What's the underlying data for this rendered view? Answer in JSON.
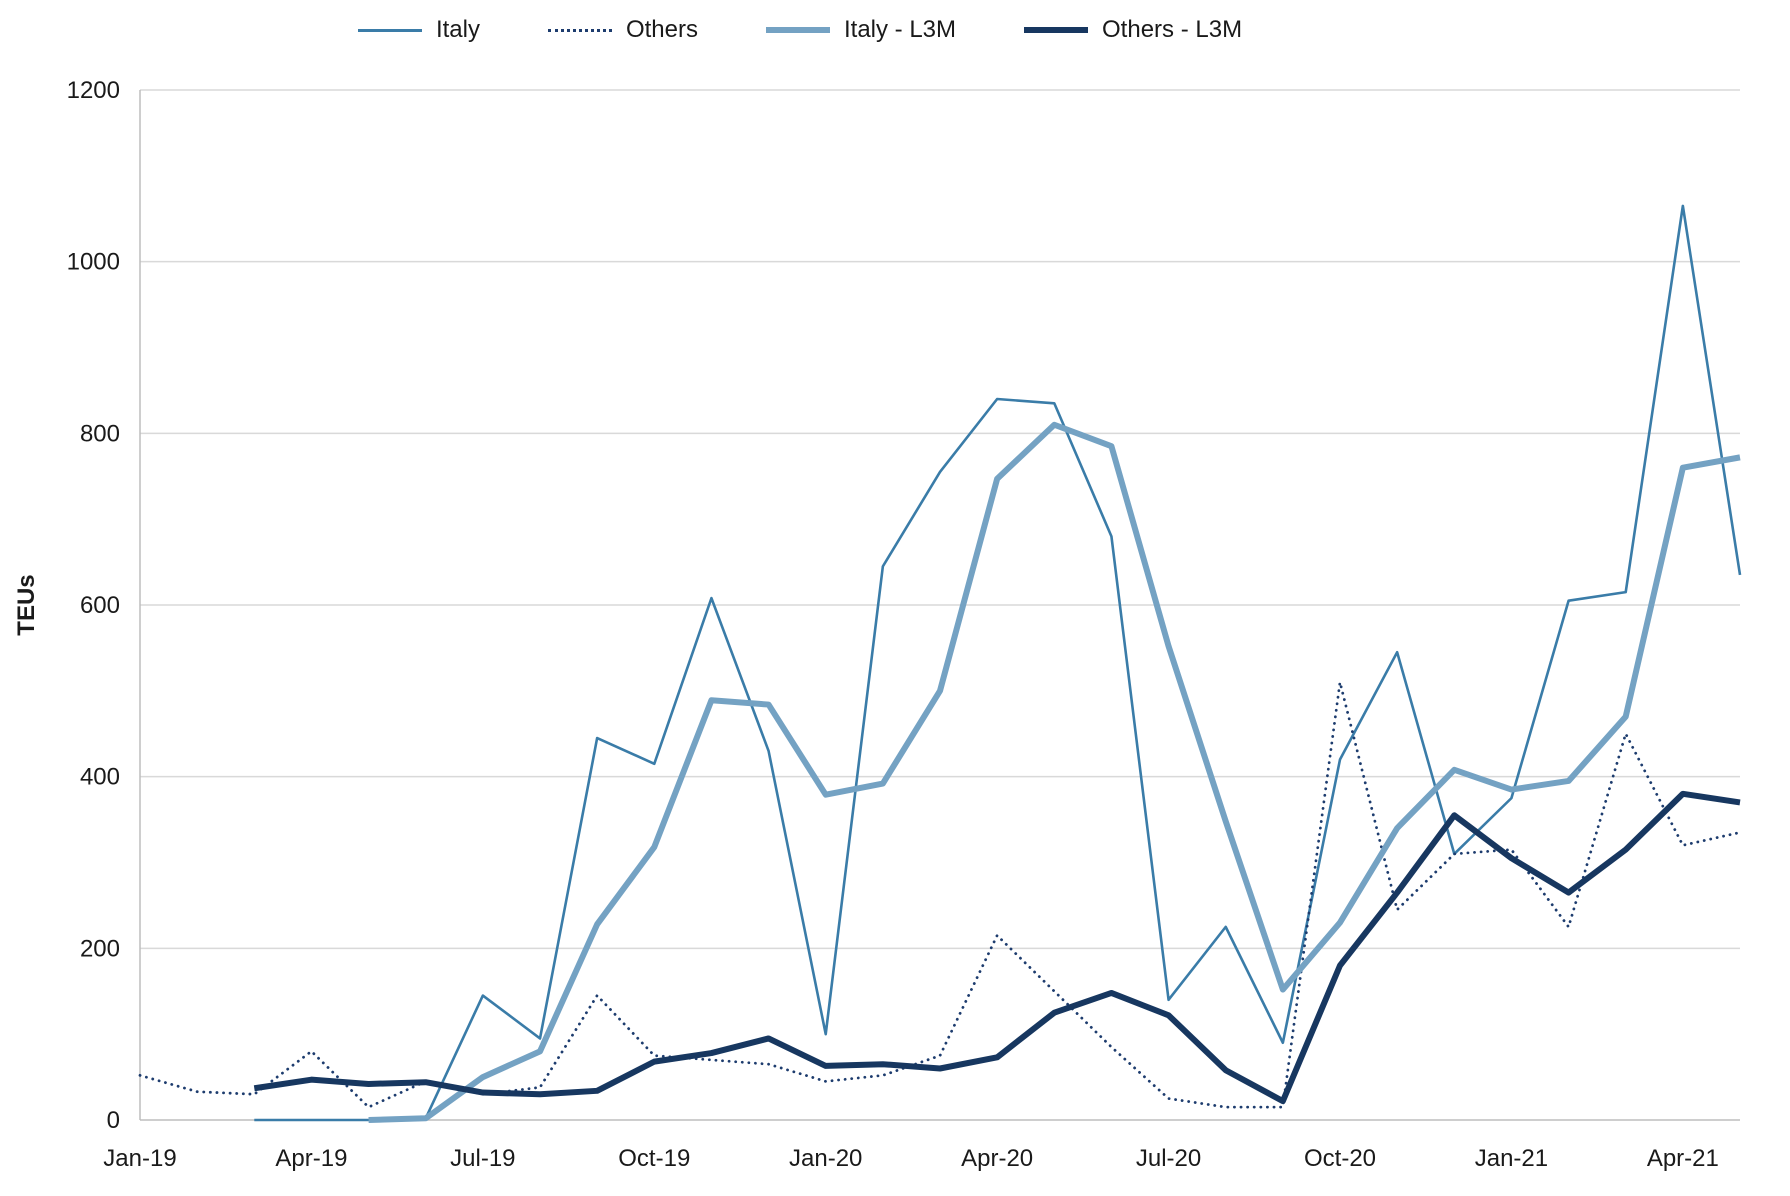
{
  "figure": {
    "background": "#ffffff",
    "grid_color": "#d9d9d9",
    "axis_color": "#bdbdbd",
    "text_color": "#1a1a1a"
  },
  "legend": [
    {
      "label": "Italy",
      "color": "#3a7ca8",
      "style": "thin"
    },
    {
      "label": "Others",
      "color": "#1d3c6e",
      "style": "dotted"
    },
    {
      "label": "Italy - L3M",
      "color": "#74a2c3",
      "style": "thick"
    },
    {
      "label": "Others - L3M",
      "color": "#173760",
      "style": "thick"
    }
  ],
  "chart_data": {
    "type": "line",
    "title": "",
    "xlabel": "",
    "ylabel": "TEUs",
    "ylim": [
      0,
      1200
    ],
    "y_ticks": [
      0,
      200,
      400,
      600,
      800,
      1000,
      1200
    ],
    "grid": "horizontal",
    "legend_position": "top",
    "x": [
      "Jan-19",
      "Feb-19",
      "Mar-19",
      "Apr-19",
      "May-19",
      "Jun-19",
      "Jul-19",
      "Aug-19",
      "Sep-19",
      "Oct-19",
      "Nov-19",
      "Dec-19",
      "Jan-20",
      "Feb-20",
      "Mar-20",
      "Apr-20",
      "May-20",
      "Jun-20",
      "Jul-20",
      "Aug-20",
      "Sep-20",
      "Oct-20",
      "Nov-20",
      "Dec-20",
      "Jan-21",
      "Feb-21",
      "Mar-21",
      "Apr-21",
      "May-21"
    ],
    "x_tick_labels": [
      "Jan-19",
      "Apr-19",
      "Jul-19",
      "Oct-19",
      "Jan-20",
      "Apr-20",
      "Jul-20",
      "Oct-20",
      "Jan-21",
      "Apr-21"
    ],
    "series": [
      {
        "name": "Italy",
        "color": "#3a7ca8",
        "line_style": "solid",
        "line_width": 2.6,
        "values": [
          null,
          null,
          0,
          0,
          0,
          2,
          145,
          95,
          445,
          415,
          608,
          430,
          100,
          645,
          755,
          840,
          835,
          680,
          140,
          225,
          90,
          420,
          545,
          310,
          375,
          605,
          615,
          1065,
          635
        ]
      },
      {
        "name": "Others",
        "color": "#1d3c6e",
        "line_style": "dotted",
        "line_width": 2.8,
        "values": [
          52,
          33,
          30,
          80,
          15,
          45,
          30,
          38,
          145,
          75,
          70,
          65,
          45,
          52,
          75,
          215,
          150,
          85,
          25,
          15,
          15,
          510,
          245,
          310,
          315,
          225,
          450,
          320,
          335
        ]
      },
      {
        "name": "Italy - L3M",
        "color": "#74a2c3",
        "line_style": "solid",
        "line_width": 6,
        "values": [
          null,
          null,
          null,
          null,
          0,
          2,
          50,
          80,
          228,
          318,
          489,
          484,
          379,
          392,
          500,
          747,
          810,
          785,
          552,
          348,
          152,
          230,
          340,
          408,
          385,
          395,
          470,
          760,
          772
        ]
      },
      {
        "name": "Others - L3M",
        "color": "#173760",
        "line_style": "solid",
        "line_width": 6,
        "values": [
          null,
          null,
          37,
          47,
          42,
          44,
          32,
          30,
          34,
          68,
          78,
          95,
          63,
          65,
          60,
          73,
          125,
          148,
          122,
          58,
          22,
          180,
          265,
          355,
          305,
          265,
          315,
          380,
          370
        ]
      }
    ]
  }
}
